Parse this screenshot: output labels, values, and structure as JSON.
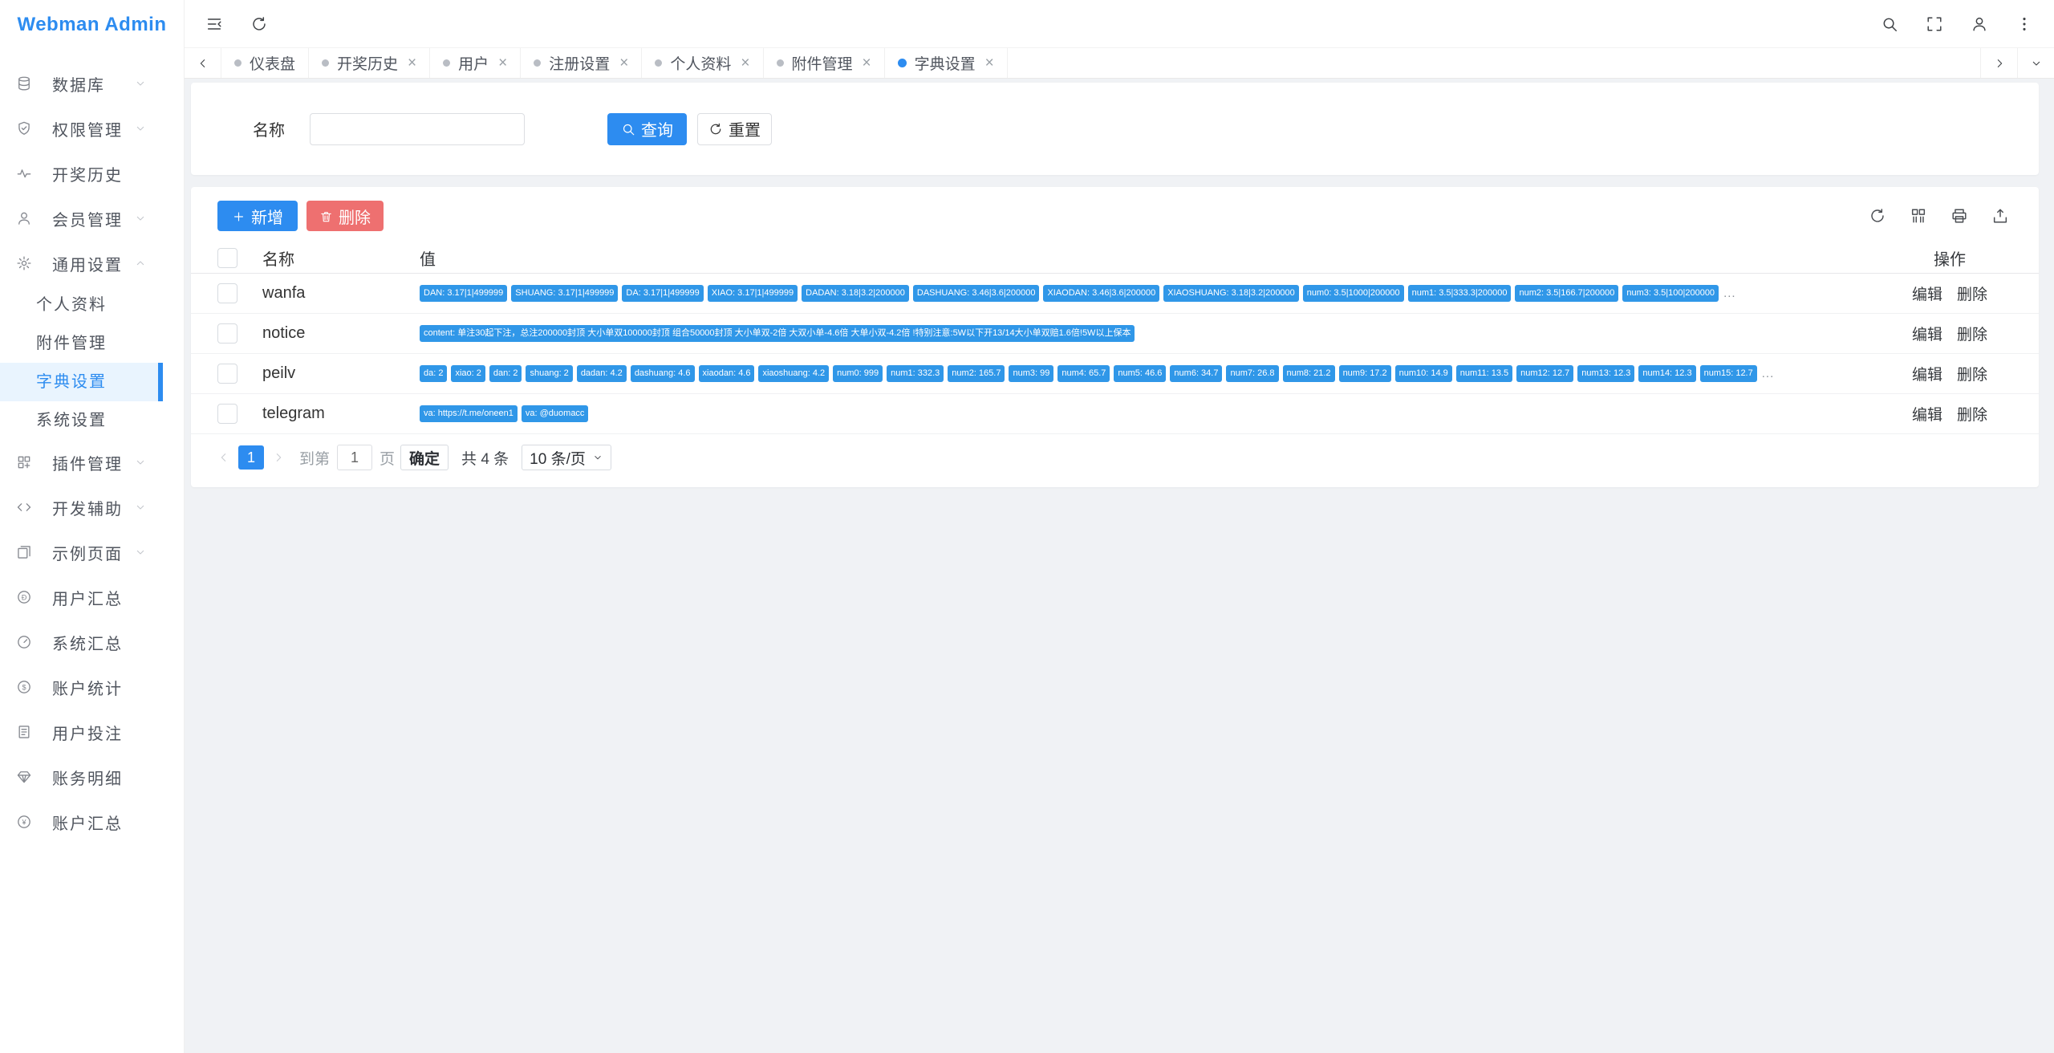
{
  "app": {
    "title": "Webman Admin"
  },
  "colors": {
    "primary": "#2d8cf0",
    "tag_blue": "#3097e8",
    "danger": "#ee7070",
    "active_bg": "#e9f4fe"
  },
  "sidebar": {
    "items": [
      {
        "label": "数据库",
        "icon": "database-icon",
        "chevron": "down"
      },
      {
        "label": "权限管理",
        "icon": "shield-icon",
        "chevron": "down"
      },
      {
        "label": "开奖历史",
        "icon": "activity-icon",
        "chevron": ""
      },
      {
        "label": "会员管理",
        "icon": "user-icon",
        "chevron": "down"
      },
      {
        "label": "通用设置",
        "icon": "gear-icon",
        "chevron": "up",
        "children": [
          {
            "label": "个人资料",
            "active": false
          },
          {
            "label": "附件管理",
            "active": false
          },
          {
            "label": "字典设置",
            "active": true
          },
          {
            "label": "系统设置",
            "active": false
          }
        ]
      },
      {
        "label": "插件管理",
        "icon": "plugin-icon",
        "chevron": "down"
      },
      {
        "label": "开发辅助",
        "icon": "code-icon",
        "chevron": "down"
      },
      {
        "label": "示例页面",
        "icon": "pages-icon",
        "chevron": "down"
      },
      {
        "label": "用户汇总",
        "icon": "coin-icon",
        "chevron": ""
      },
      {
        "label": "系统汇总",
        "icon": "dashboard-icon",
        "chevron": ""
      },
      {
        "label": "账户统计",
        "icon": "dollar-icon",
        "chevron": ""
      },
      {
        "label": "用户投注",
        "icon": "document-icon",
        "chevron": ""
      },
      {
        "label": "账务明细",
        "icon": "gem-icon",
        "chevron": ""
      },
      {
        "label": "账户汇总",
        "icon": "yen-icon",
        "chevron": ""
      }
    ]
  },
  "tabs": [
    {
      "label": "仪表盘",
      "closable": false,
      "active": false
    },
    {
      "label": "开奖历史",
      "closable": true,
      "active": false
    },
    {
      "label": "用户",
      "closable": true,
      "active": false
    },
    {
      "label": "注册设置",
      "closable": true,
      "active": false
    },
    {
      "label": "个人资料",
      "closable": true,
      "active": false
    },
    {
      "label": "附件管理",
      "closable": true,
      "active": false
    },
    {
      "label": "字典设置",
      "closable": true,
      "active": true
    }
  ],
  "search": {
    "name_label": "名称",
    "name_value": "",
    "query_label": "查询",
    "reset_label": "重置"
  },
  "toolbar": {
    "add_label": "新增",
    "delete_label": "删除"
  },
  "table": {
    "headers": {
      "name": "名称",
      "value": "值",
      "actions": "操作"
    },
    "actions": {
      "edit": "编辑",
      "delete": "删除"
    },
    "rows": [
      {
        "name": "wanfa",
        "overflow": true,
        "tags": [
          "DAN: 3.17|1|499999",
          "SHUANG: 3.17|1|499999",
          "DA: 3.17|1|499999",
          "XIAO: 3.17|1|499999",
          "DADAN: 3.18|3.2|200000",
          "DASHUANG: 3.46|3.6|200000",
          "XIAODAN: 3.46|3.6|200000",
          "XIAOSHUANG: 3.18|3.2|200000",
          "num0: 3.5|1000|200000",
          "num1: 3.5|333.3|200000",
          "num2: 3.5|166.7|200000",
          "num3: 3.5|100|200000"
        ]
      },
      {
        "name": "notice",
        "overflow": false,
        "tags": [
          "content: 单注30起下注，总注200000封顶 大小单双100000封顶 组合50000封顶 大小单双-2倍 大双小单-4.6倍 大单小双-4.2倍 !特别注意:5W以下开13/14大小单双赔1.6倍!5W以上保本"
        ]
      },
      {
        "name": "peilv",
        "overflow": true,
        "tags": [
          "da: 2",
          "xiao: 2",
          "dan: 2",
          "shuang: 2",
          "dadan: 4.2",
          "dashuang: 4.6",
          "xiaodan: 4.6",
          "xiaoshuang: 4.2",
          "num0: 999",
          "num1: 332.3",
          "num2: 165.7",
          "num3: 99",
          "num4: 65.7",
          "num5: 46.6",
          "num6: 34.7",
          "num7: 26.8",
          "num8: 21.2",
          "num9: 17.2",
          "num10: 14.9",
          "num11: 13.5",
          "num12: 12.7",
          "num13: 12.3",
          "num14: 12.3",
          "num15: 12.7"
        ]
      },
      {
        "name": "telegram",
        "overflow": false,
        "tags": [
          "va: https://t.me/oneen1",
          "va: @duomacc"
        ]
      }
    ],
    "ellipsis": "..."
  },
  "pagination": {
    "prev": "‹",
    "page": "1",
    "next": "›",
    "goto_label": "到第",
    "goto_value": "1",
    "page_label": "页",
    "confirm_label": "确定",
    "total_label": "共 4 条",
    "page_size": "10 条/页"
  }
}
